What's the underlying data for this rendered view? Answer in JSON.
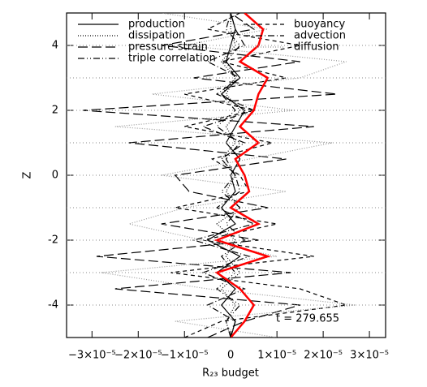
{
  "chart_data": {
    "type": "line",
    "xlabel": "R₂₃ budget",
    "ylabel": "Z",
    "annotation": "t = 279.655",
    "xlim": [
      -3.55e-05,
      3.35e-05
    ],
    "ylim": [
      -5,
      5
    ],
    "xticks": [
      {
        "value": -3e-05,
        "label": "−3×10⁻⁵"
      },
      {
        "value": -2e-05,
        "label": "−2×10⁻⁵"
      },
      {
        "value": -1e-05,
        "label": "−1×10⁻⁵"
      },
      0,
      {
        "value": 1e-05,
        "label": "1×10⁻⁵"
      },
      {
        "value": 2e-05,
        "label": "2×10⁻⁵"
      },
      {
        "value": 3e-05,
        "label": "3×10⁻⁵"
      }
    ],
    "yticks": [
      -4,
      -2,
      0,
      2,
      4
    ],
    "hlines": [
      -3,
      -1,
      1,
      3
    ],
    "legend": "top",
    "y": [
      -5,
      -4.5,
      -4,
      -3.5,
      -3,
      -2.5,
      -2,
      -1.5,
      -1,
      -0.5,
      0,
      0.5,
      1,
      1.5,
      2,
      2.5,
      3,
      3.5,
      4,
      4.5,
      5
    ],
    "series": [
      {
        "name": "production",
        "color": "#000000",
        "style": "solid",
        "values": [
          0,
          1e-06,
          -2e-06,
          1e-06,
          -3e-06,
          2e-06,
          -5e-06,
          1e-06,
          -2e-06,
          1e-06,
          0,
          2e-06,
          -1e-06,
          1e-06,
          3e-06,
          -2e-06,
          2e-06,
          -1e-06,
          0,
          1e-06,
          0
        ]
      },
      {
        "name": "dissipation",
        "color": "#000000",
        "style": "dotted",
        "values": [
          0,
          -1e-06,
          1e-06,
          -2e-06,
          2e-06,
          -1e-06,
          1e-06,
          -3e-06,
          2e-06,
          -1e-06,
          1e-06,
          -2e-06,
          1e-06,
          -1e-06,
          2e-06,
          -1e-06,
          1e-06,
          -2e-06,
          1e-06,
          0,
          0
        ]
      },
      {
        "name": "pressure-strain",
        "color": "#000000",
        "style": "longdash",
        "values": [
          -5e-06,
          3e-06,
          1.5e-05,
          -2.5e-05,
          1.3e-05,
          -2.9e-05,
          6e-06,
          -1.5e-05,
          8e-06,
          -9e-06,
          -1.2e-05,
          1.2e-05,
          -2.2e-05,
          1.8e-05,
          -3.2e-05,
          2.3e-05,
          -8e-06,
          1.5e-05,
          -1.5e-05,
          5e-06,
          0
        ]
      },
      {
        "name": "triple correlation",
        "color": "#000000",
        "style": "dashdotdot",
        "values": [
          0,
          -1e-06,
          2e-06,
          -3e-06,
          1e-06,
          -2e-06,
          3e-06,
          -1e-06,
          2e-06,
          -2e-06,
          1e-06,
          -1e-06,
          2e-06,
          -3e-06,
          1e-06,
          -2e-06,
          1e-06,
          -1e-06,
          2e-06,
          -1e-06,
          0
        ]
      },
      {
        "name": "buoyancy",
        "color": "#000000",
        "style": "dashed",
        "values": [
          -1e-05,
          -2e-06,
          2.5e-05,
          1.5e-05,
          -1.3e-05,
          1.8e-05,
          -6e-06,
          1e-05,
          -1.2e-05,
          4e-06,
          2e-06,
          -4e-06,
          9e-06,
          -1e-05,
          5e-06,
          -1e-05,
          1.2e-05,
          -2e-06,
          1.5e-05,
          -5e-06,
          2e-06
        ]
      },
      {
        "name": "advection",
        "color": "#000000",
        "style": "dashdot",
        "values": [
          0,
          1e-06,
          -5e-06,
          3e-06,
          -6e-06,
          4e-06,
          -8e-06,
          5e-06,
          -3e-06,
          2e-06,
          1e-06,
          -2e-06,
          3e-06,
          -6e-06,
          5e-06,
          -3e-06,
          2e-06,
          -5e-06,
          3e-06,
          1e-06,
          0
        ]
      },
      {
        "name": "diffusion",
        "color": "#999999",
        "style": "dotted",
        "values": [
          1e-05,
          -1.2e-05,
          2.7e-05,
          -5e-06,
          -2.8e-05,
          1e-05,
          -6e-06,
          -2.2e-05,
          -1e-05,
          1.2e-05,
          -1.5e-05,
          4e-06,
          2.2e-05,
          -2.5e-05,
          1.4e-05,
          -1.7e-05,
          1.5e-05,
          2.5e-05,
          -1e-05,
          8e-06,
          -1.5e-05
        ]
      },
      {
        "color": "#ff0000",
        "style": "solid",
        "values": [
          0,
          3e-06,
          5e-06,
          2e-06,
          -3e-06,
          8e-06,
          -3e-06,
          6e-06,
          0,
          4e-06,
          3e-06,
          1e-06,
          6e-06,
          2e-06,
          5e-06,
          6e-06,
          8e-06,
          2e-06,
          6e-06,
          7e-06,
          3e-06
        ]
      }
    ]
  }
}
